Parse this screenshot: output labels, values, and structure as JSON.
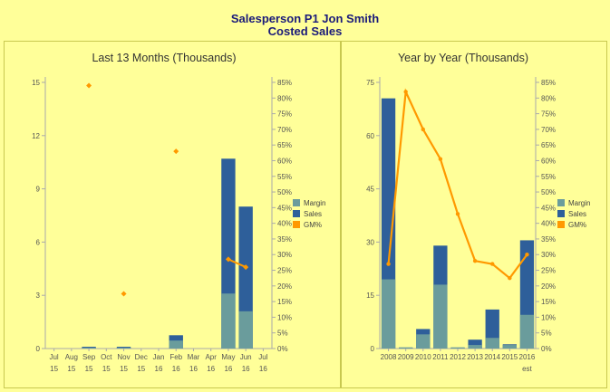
{
  "header": {
    "title": "Salesperson P1 Jon Smith",
    "subtitle": "Costed Sales"
  },
  "chart_data": [
    {
      "type": "bar",
      "title": "Last 13 Months (Thousands)",
      "stacked": true,
      "categories": [
        [
          "Jul",
          "15"
        ],
        [
          "Aug",
          "15"
        ],
        [
          "Sep",
          "15"
        ],
        [
          "Oct",
          "15"
        ],
        [
          "Nov",
          "15"
        ],
        [
          "Dec",
          "15"
        ],
        [
          "Jan",
          "16"
        ],
        [
          "Feb",
          "16"
        ],
        [
          "Mar",
          "16"
        ],
        [
          "Apr",
          "16"
        ],
        [
          "May",
          "16"
        ],
        [
          "Jun",
          "16"
        ],
        [
          "Jul",
          "16"
        ]
      ],
      "series": [
        {
          "name": "Margin",
          "kind": "bar",
          "color": "#6a9c9c",
          "values": [
            0,
            0,
            0.05,
            0,
            0.05,
            0,
            0,
            0.45,
            0,
            0,
            3.1,
            2.1,
            0
          ]
        },
        {
          "name": "Sales",
          "kind": "bar",
          "color": "#2e5f9a",
          "values": [
            0,
            0,
            0.1,
            0,
            0.1,
            0,
            0,
            0.75,
            0,
            0,
            10.7,
            8.0,
            0
          ]
        },
        {
          "name": "GM%",
          "kind": "marker",
          "color": "#ff9900",
          "axis": "right",
          "values": [
            null,
            null,
            84,
            null,
            17.5,
            null,
            null,
            63,
            null,
            null,
            28.5,
            26,
            null
          ]
        }
      ],
      "ylim": [
        0,
        15
      ],
      "yticks": [
        0,
        3,
        6,
        9,
        12,
        15
      ],
      "y2lim": [
        0,
        85
      ],
      "y2ticks": [
        "0%",
        "5%",
        "10%",
        "15%",
        "20%",
        "25%",
        "30%",
        "35%",
        "40%",
        "45%",
        "50%",
        "55%",
        "60%",
        "65%",
        "70%",
        "75%",
        "80%",
        "85%"
      ],
      "legend": "right"
    },
    {
      "type": "bar",
      "title": "Year by Year (Thousands)",
      "stacked": true,
      "categories": [
        [
          "2008",
          ""
        ],
        [
          "2009",
          ""
        ],
        [
          "2010",
          ""
        ],
        [
          "2011",
          ""
        ],
        [
          "2012",
          ""
        ],
        [
          "2013",
          ""
        ],
        [
          "2014",
          ""
        ],
        [
          "2015",
          ""
        ],
        [
          "2016",
          "est"
        ]
      ],
      "series": [
        {
          "name": "Margin",
          "kind": "bar",
          "color": "#6a9c9c",
          "values": [
            19.5,
            0.3,
            4,
            18,
            0.3,
            1,
            3,
            1,
            9.5
          ]
        },
        {
          "name": "Sales",
          "kind": "bar",
          "color": "#2e5f9a",
          "values": [
            70.5,
            0.3,
            5.5,
            29,
            0.3,
            2.5,
            11,
            1.2,
            30.5
          ]
        },
        {
          "name": "GM%",
          "kind": "line",
          "color": "#ff9900",
          "axis": "right",
          "values": [
            27,
            82,
            70,
            60.5,
            43,
            28,
            27,
            22.5,
            30
          ]
        }
      ],
      "ylim": [
        0,
        75
      ],
      "yticks": [
        0,
        15,
        30,
        45,
        60,
        75
      ],
      "y2lim": [
        0,
        85
      ],
      "y2ticks": [
        "0%",
        "5%",
        "10%",
        "15%",
        "20%",
        "25%",
        "30%",
        "35%",
        "40%",
        "45%",
        "50%",
        "55%",
        "60%",
        "65%",
        "70%",
        "75%",
        "80%",
        "85%"
      ],
      "legend": "right"
    }
  ]
}
